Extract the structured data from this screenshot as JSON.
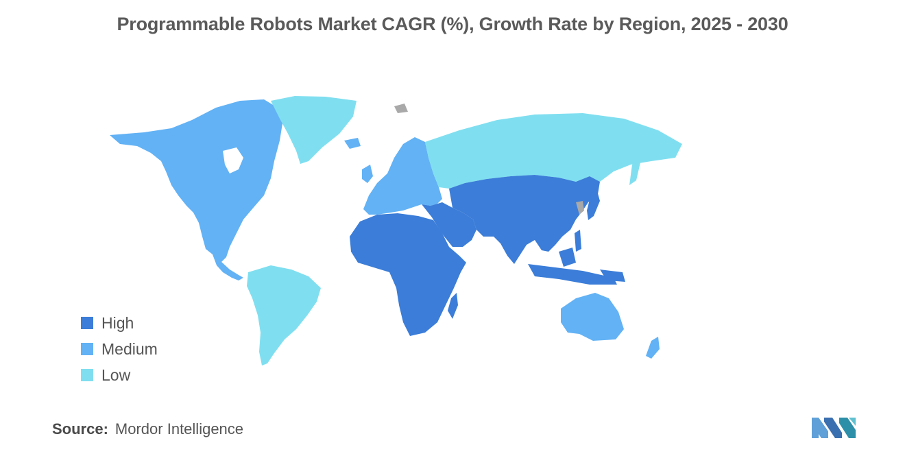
{
  "title": "Programmable Robots Market CAGR (%), Growth Rate by Region, 2025 - 2030",
  "legend": [
    {
      "label": "High",
      "color": "#3b7dd8"
    },
    {
      "label": "Medium",
      "color": "#62b2f5"
    },
    {
      "label": "Low",
      "color": "#7fdff0"
    }
  ],
  "no_data_color": "#a9a9a9",
  "source": {
    "label": "Source:",
    "value": "Mordor Intelligence"
  },
  "map_regions": [
    {
      "region": "North America",
      "level": "Medium"
    },
    {
      "region": "Greenland",
      "level": "Low"
    },
    {
      "region": "South America",
      "level": "Low"
    },
    {
      "region": "Europe",
      "level": "Medium"
    },
    {
      "region": "Russia",
      "level": "Low"
    },
    {
      "region": "Africa",
      "level": "High"
    },
    {
      "region": "Middle East",
      "level": "High"
    },
    {
      "region": "Asia-Pacific",
      "level": "High"
    },
    {
      "region": "Australia and New Zealand",
      "level": "Medium"
    }
  ]
}
